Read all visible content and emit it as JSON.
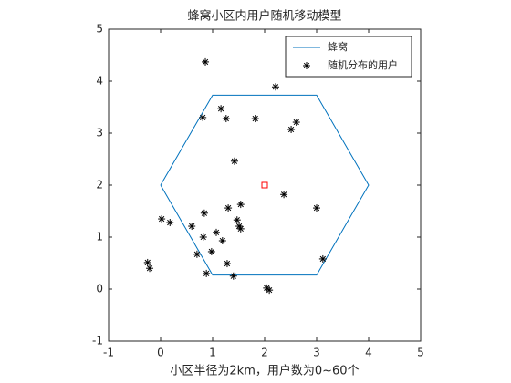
{
  "chart_data": {
    "type": "scatter",
    "title": "蜂窝小区内用户随机移动模型",
    "x_label": "小区半径为2km，用户数为0~60个",
    "xlim": [
      -1,
      5
    ],
    "ylim": [
      -1,
      5
    ],
    "xticks": [
      -1,
      0,
      1,
      2,
      3,
      4,
      5
    ],
    "yticks": [
      -1,
      0,
      1,
      2,
      3,
      4,
      5
    ],
    "legend": "northeast",
    "series": [
      {
        "name": "蜂窝",
        "type": "line",
        "color": "#0072bd",
        "x": [
          0,
          1,
          3,
          4,
          3,
          1,
          0
        ],
        "values": [
          2,
          3.73,
          3.73,
          2,
          0.27,
          0.27,
          2
        ]
      },
      {
        "name": "随机分布的用户",
        "type": "scatter",
        "marker": "asterisk",
        "color": "#000000",
        "x": [
          0.86,
          2.21,
          1.16,
          0.81,
          1.26,
          1.82,
          2.61,
          2.51,
          1.42,
          2.37,
          3.0,
          1.54,
          1.3,
          0.84,
          0.02,
          0.18,
          1.47,
          1.51,
          0.6,
          1.54,
          1.07,
          0.82,
          1.19,
          0.98,
          0.7,
          3.12,
          -0.25,
          -0.21,
          1.28,
          0.88,
          1.4,
          2.04,
          2.09
        ],
        "values": [
          4.37,
          3.89,
          3.47,
          3.3,
          3.28,
          3.28,
          3.21,
          3.07,
          2.46,
          1.82,
          1.56,
          1.63,
          1.56,
          1.46,
          1.35,
          1.28,
          1.33,
          1.21,
          1.21,
          1.16,
          1.09,
          1.0,
          0.93,
          0.72,
          0.67,
          0.58,
          0.51,
          0.4,
          0.49,
          0.3,
          0.25,
          0.02,
          -0.02
        ]
      },
      {
        "type": "scatter",
        "marker": "square",
        "color": "#ff0000",
        "x": [
          2
        ],
        "values": [
          2
        ]
      }
    ]
  }
}
